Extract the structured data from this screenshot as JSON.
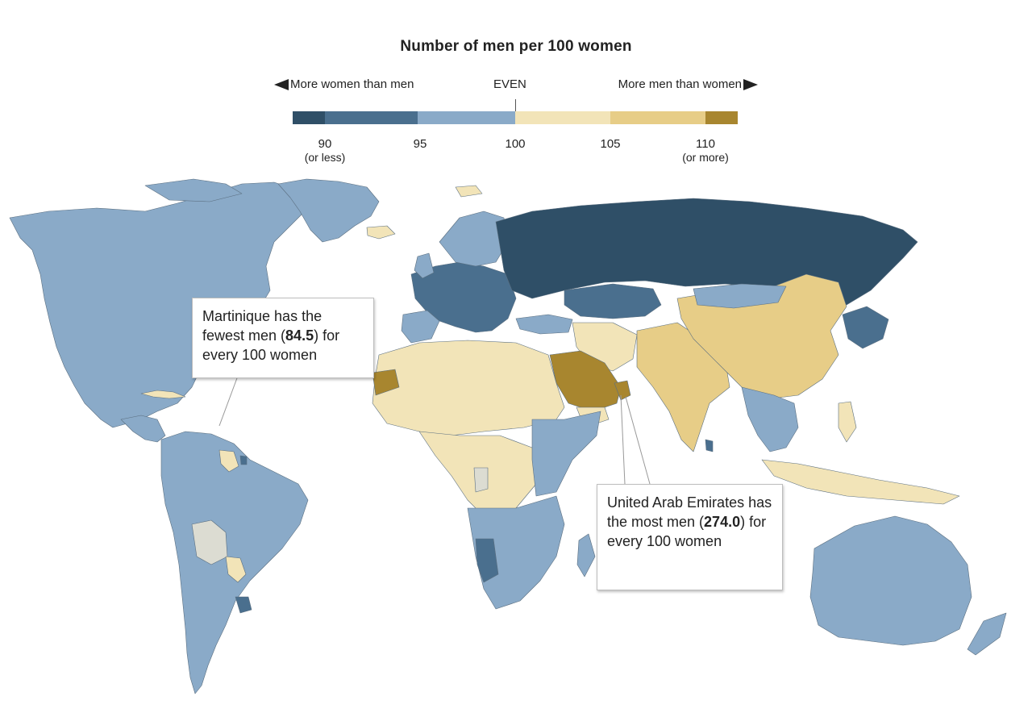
{
  "title": "Number of men per 100 women",
  "legend": {
    "left_label": "More women than men",
    "middle_label": "EVEN",
    "right_label": "More men than women",
    "swatches": [
      "#2f4f67",
      "#4a6f8e",
      "#8aaac8",
      "#f2e4b8",
      "#e7cd87",
      "#a8862f"
    ],
    "ticks": [
      {
        "value": "90",
        "sub": "(or less)"
      },
      {
        "value": "95",
        "sub": ""
      },
      {
        "value": "100",
        "sub": ""
      },
      {
        "value": "105",
        "sub": ""
      },
      {
        "value": "110",
        "sub": "(or more)"
      }
    ]
  },
  "callouts": {
    "martinique": {
      "pre": "Martinique has the fewest men (",
      "value": "84.5",
      "post": ") for every 100 women"
    },
    "uae": {
      "pre": "United Arab Emirates has the most men (",
      "value": "274.0",
      "post": ") for every 100 women"
    }
  },
  "map_colors": {
    "ocean": "#ffffff",
    "dark": "#2f4f67",
    "mid": "#4a6f8e",
    "light": "#8aaac8",
    "pale": "#f2e4b8",
    "tan": "#e7cd87",
    "brown": "#a8862f",
    "nodata": "#dcdcd2"
  }
}
